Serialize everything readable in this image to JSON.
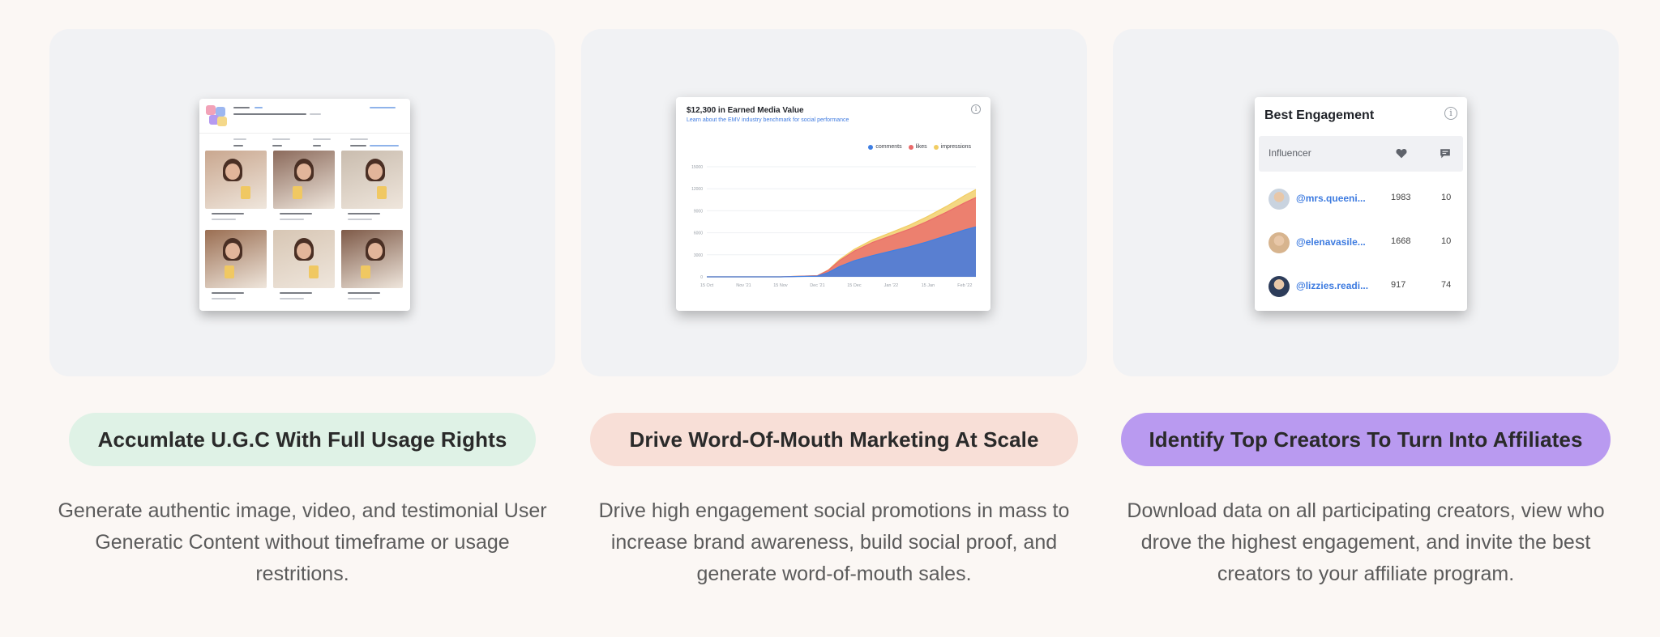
{
  "cards": [
    {
      "pill": "Accumlate U.G.C With Full Usage Rights",
      "pill_color": "#dff2e6",
      "description": "Generate authentic image, video, and testimonial User Generatic Content without timeframe or usage restritions."
    },
    {
      "pill": "Drive Word-Of-Mouth Marketing At Scale",
      "pill_color": "#f8dfd7",
      "description": "Drive high engagement social promotions in mass to increase brand awareness, build social proof, and generate word-of-mouth sales."
    },
    {
      "pill": "Identify Top Creators To Turn Into Affiliates",
      "pill_color": "#b99af0",
      "description": "Download data on all participating creators, view who drove the highest engagement, and invite the best creators to your affiliate program."
    }
  ],
  "emv_card": {
    "title": "$12,300 in Earned Media Value",
    "subtitle": "Learn about the EMV industry benchmark for social performance",
    "info_icon": "info-icon",
    "legend": [
      {
        "name": "comments",
        "color": "#3f7fe3"
      },
      {
        "name": "likes",
        "color": "#ea6a6a"
      },
      {
        "name": "impressions",
        "color": "#f1cd63"
      }
    ]
  },
  "chart_data": {
    "type": "area",
    "title": "$12,300 in Earned Media Value",
    "x_ticks": [
      "15 Oct",
      "Nov '21",
      "15 Nov",
      "Dec '21",
      "15 Dec",
      "Jan '22",
      "15 Jan",
      "Feb '22"
    ],
    "y_ticks": [
      "0",
      "3000",
      "6000",
      "9000",
      "12000",
      "15000"
    ],
    "ylim": [
      0,
      15000
    ],
    "stacked": true,
    "x": [
      0,
      1,
      2,
      3,
      3.3,
      3.6,
      4,
      4.5,
      5,
      5.5,
      6,
      6.5,
      7,
      7.3
    ],
    "series": [
      {
        "name": "comments",
        "color": "#3f7fe3",
        "values": [
          0,
          0,
          0,
          100,
          600,
          1400,
          2200,
          2900,
          3500,
          4100,
          4800,
          5600,
          6400,
          6800
        ]
      },
      {
        "name": "likes",
        "color": "#ea6a6a",
        "values": [
          0,
          0,
          0,
          50,
          300,
          800,
          1300,
          1800,
          2100,
          2400,
          2800,
          3200,
          3700,
          4000
        ]
      },
      {
        "name": "impressions",
        "color": "#f1cd63",
        "values": [
          0,
          0,
          0,
          0,
          50,
          150,
          250,
          350,
          450,
          550,
          650,
          800,
          1000,
          1100
        ]
      }
    ]
  },
  "engagement": {
    "title": "Best Engagement",
    "column_label": "Influencer",
    "heart_icon": "heart-icon",
    "comment_icon": "comment-icon",
    "rows": [
      {
        "handle": "@mrs.queeni...",
        "likes": "1983",
        "comments": "10",
        "avatar_color": "#c9d3df"
      },
      {
        "handle": "@elenavasile...",
        "likes": "1668",
        "comments": "10",
        "avatar_color": "#d7b48e"
      },
      {
        "handle": "@lizzies.readi...",
        "likes": "917",
        "comments": "74",
        "avatar_color": "#2d3c5a"
      }
    ]
  },
  "ugc_card": {
    "photo_colors": [
      "#c9a78f",
      "#8b6a5b",
      "#c9bcae",
      "#9a6e52",
      "#d7c6b4",
      "#7e5a48"
    ]
  }
}
